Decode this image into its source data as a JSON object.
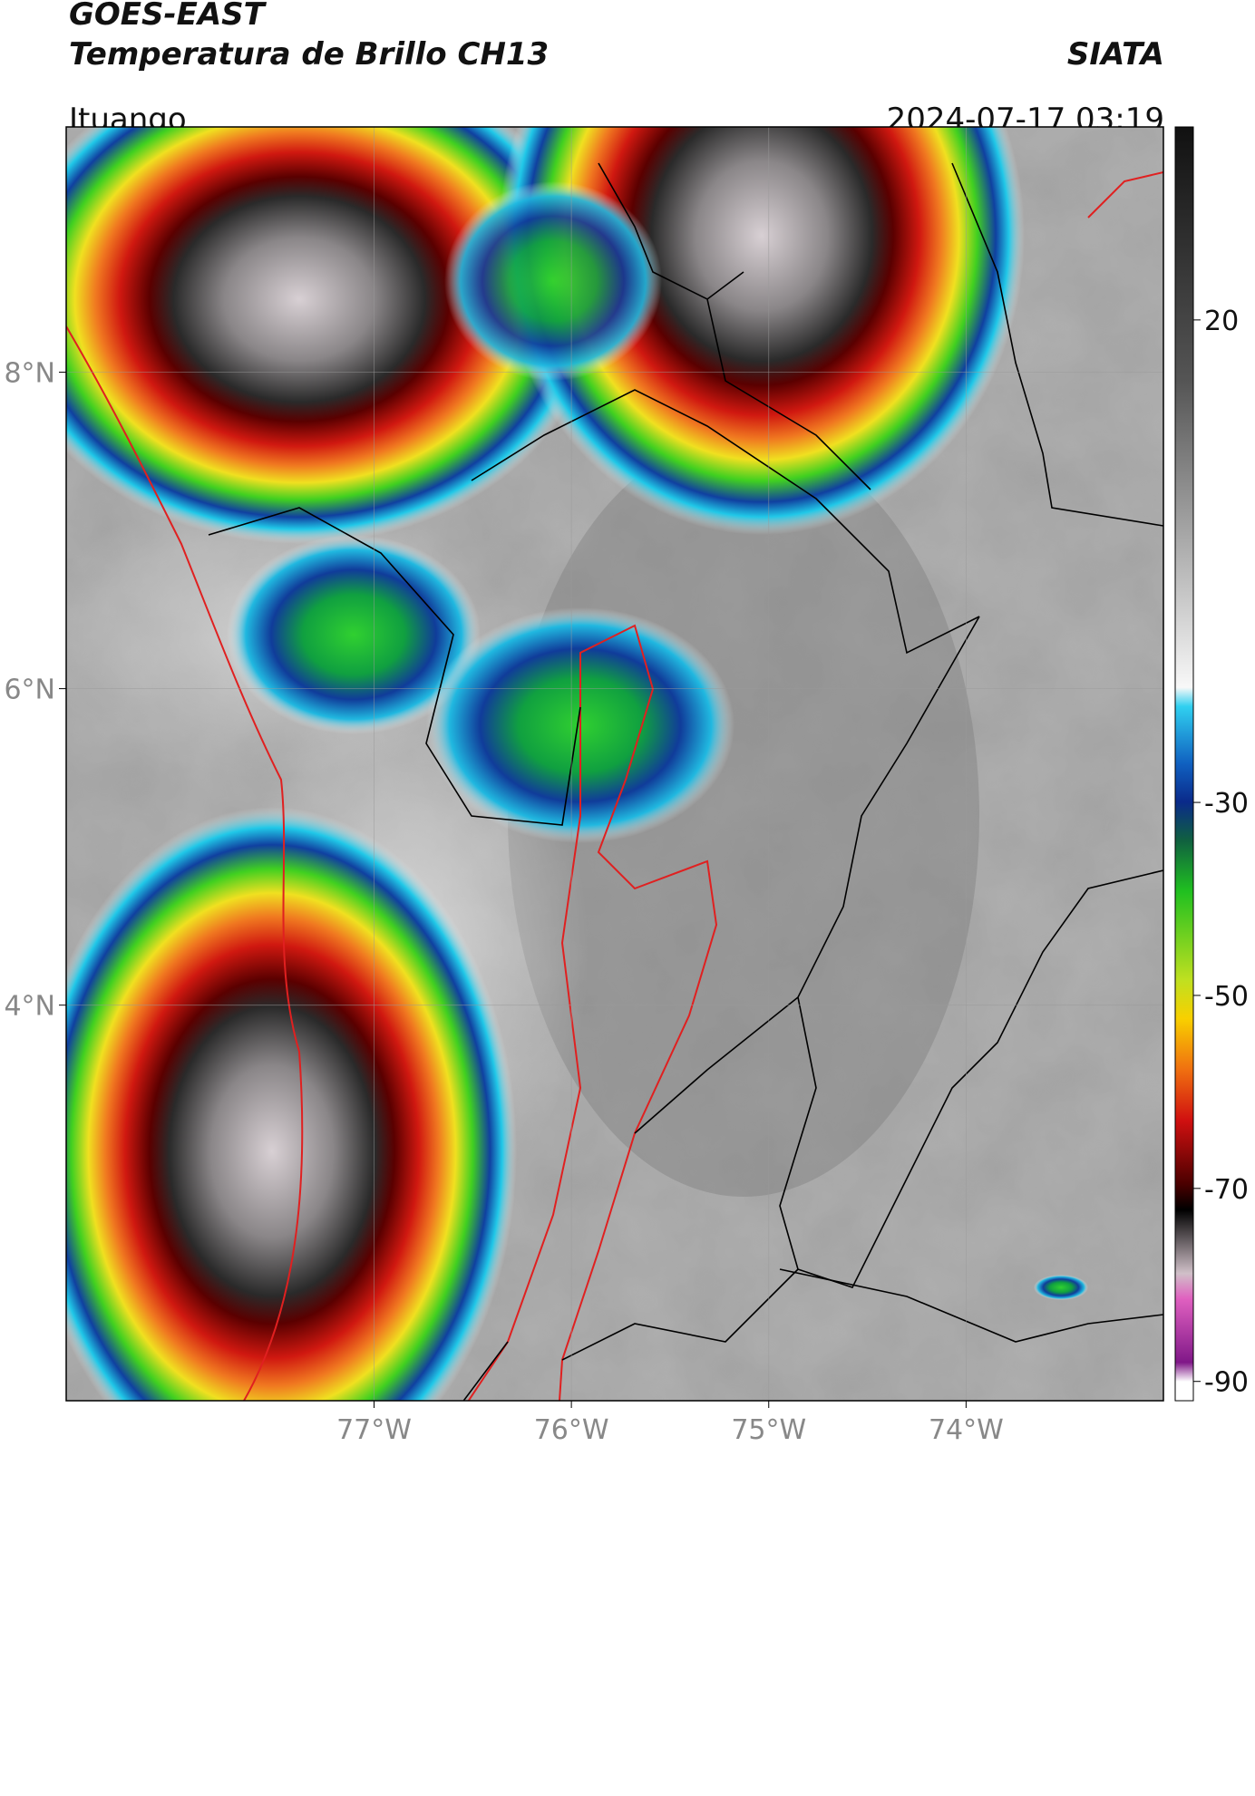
{
  "header": {
    "title_line1": "GOES-EAST",
    "title_line2": "Temperatura de Brillo CH13",
    "source": "SIATA",
    "location": "Ituango",
    "datetime": "2024-07-17 03:19"
  },
  "map": {
    "xlim": [
      -78.56,
      -73.0
    ],
    "ylim": [
      1.5,
      9.55
    ],
    "lat_ticks": [
      {
        "value": 8,
        "label": "8°N"
      },
      {
        "value": 6,
        "label": "6°N"
      },
      {
        "value": 4,
        "label": "4°N"
      }
    ],
    "lon_ticks": [
      {
        "value": -77,
        "label": "77°W"
      },
      {
        "value": -76,
        "label": "76°W"
      },
      {
        "value": -75,
        "label": "75°W"
      },
      {
        "value": -74,
        "label": "74°W"
      }
    ],
    "colorbar": {
      "lim": [
        -92,
        40
      ],
      "ticks": [
        20,
        -30,
        -50,
        -70,
        -90
      ]
    }
  }
}
